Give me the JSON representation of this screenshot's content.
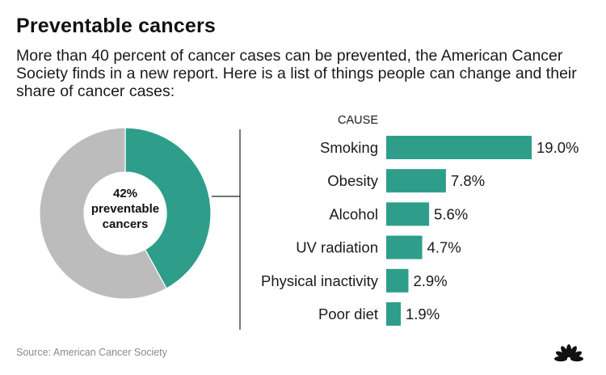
{
  "header": {
    "title": "Preventable cancers",
    "subtitle": "More than 40 percent of cancer cases can be prevented, the American Cancer Society finds in a new report. Here is a list of things people can change and their share of cancer cases:"
  },
  "footer": {
    "source": "Source: American Cancer Society",
    "logo_icon": "peacock-logo-icon"
  },
  "colors": {
    "accent": "#2e9e8a",
    "remainder": "#bcbcbc"
  },
  "chart_data": [
    {
      "type": "pie",
      "donut": true,
      "center_label": [
        "42%",
        "preventable",
        "cancers"
      ],
      "slices": [
        {
          "label": "preventable",
          "value": 42,
          "color": "#2e9e8a"
        },
        {
          "label": "",
          "value": 58,
          "color": "#bcbcbc"
        }
      ]
    },
    {
      "type": "bar",
      "orientation": "horizontal",
      "ylabel": "CAUSE",
      "categories": [
        "Smoking",
        "Obesity",
        "Alcohol",
        "UV radiation",
        "Physical inactivity",
        "Poor diet"
      ],
      "values": [
        19.0,
        7.8,
        5.6,
        4.7,
        2.9,
        1.9
      ],
      "value_labels": [
        "19.0%",
        "7.8%",
        "5.6%",
        "4.7%",
        "2.9%",
        "1.9%"
      ],
      "color": "#2e9e8a"
    }
  ]
}
